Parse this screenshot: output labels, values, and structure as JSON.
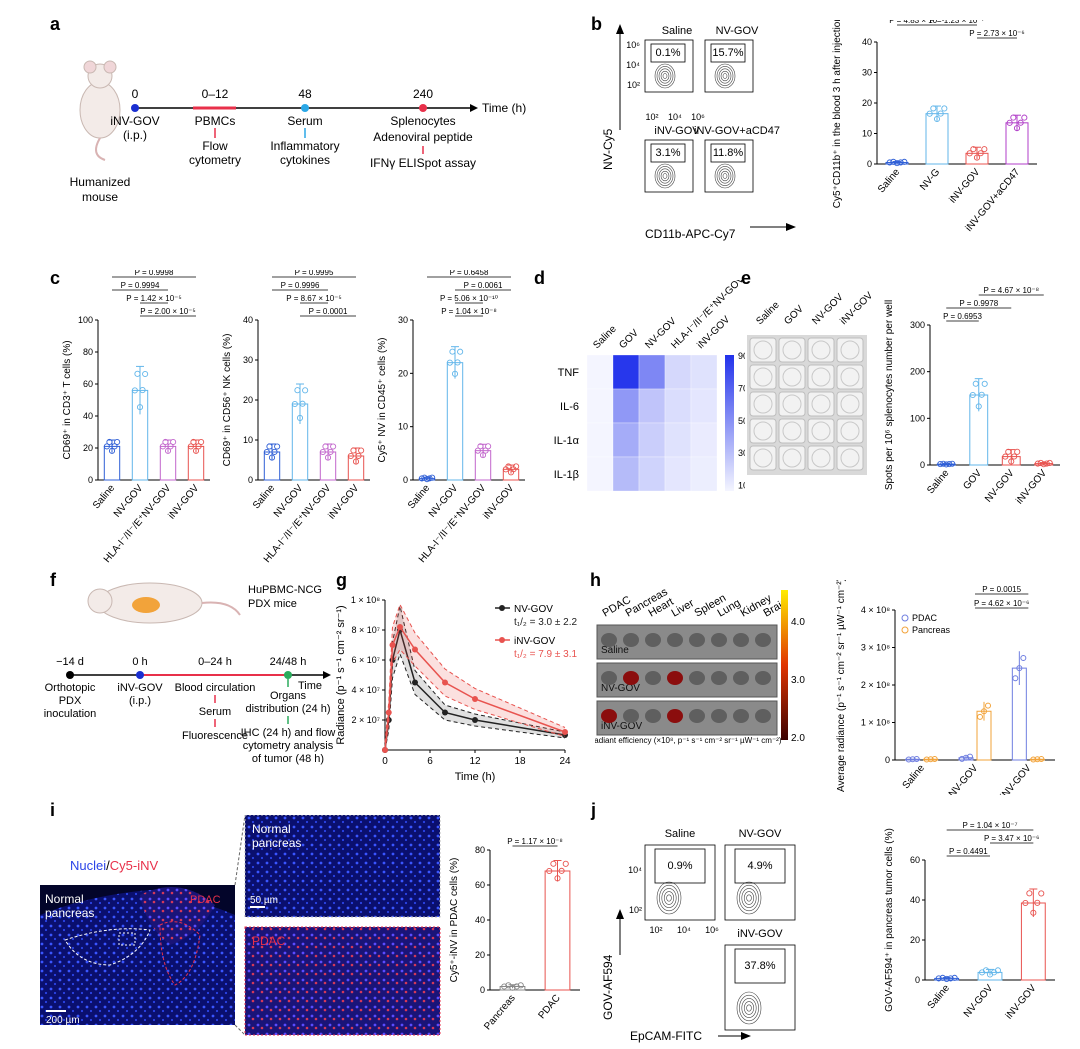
{
  "panels": {
    "a": "a",
    "b": "b",
    "c": "c",
    "d": "d",
    "e": "e",
    "f": "f",
    "g": "g",
    "h": "h",
    "i": "i",
    "j": "j"
  },
  "colors": {
    "saline": "#2f5fd6",
    "nvgov": "#62b6ea",
    "hla": "#c266cc",
    "ingov": "#e8534f",
    "acd47": "#b03cc8",
    "blue_marker": "#1a2fd1",
    "red_marker": "#e8304a",
    "cyan_marker": "#2aa7e6",
    "green_marker": "#2bab5c",
    "pancreas": "#f2a33a",
    "pdac": "#6f7ee0"
  },
  "panel_a": {
    "mouse_label_1": "Humanized",
    "mouse_label_2": "mouse",
    "time_axis_label": "Time (h)",
    "ticks": [
      {
        "t": "0",
        "l1": "iNV-GOV",
        "l2": "(i.p.)"
      },
      {
        "t": "0–12",
        "l1": "PBMCs",
        "l2": "Flow",
        "l3": "cytometry"
      },
      {
        "t": "48",
        "l1": "Serum",
        "l2": "Inflammatory",
        "l3": "cytokines"
      },
      {
        "t": "240",
        "l1": "Splenocytes",
        "l2": "Adenoviral peptide",
        "l3": "IFNγ ELISpot assay"
      }
    ]
  },
  "panel_b": {
    "y_axis": "NV-Cy5",
    "x_axis": "CD11b-APC-Cy7",
    "y_ticks": [
      "10⁶",
      "10⁴",
      "10²"
    ],
    "x_ticks": [
      "10²",
      "10⁴",
      "10⁶"
    ],
    "plots": [
      {
        "title": "Saline",
        "pct": "0.1%"
      },
      {
        "title": "NV-GOV",
        "pct": "15.7%"
      },
      {
        "title": "iNV-GOV",
        "pct": "3.1%"
      },
      {
        "title": "iNV-GOV+aCD47",
        "pct": "11.8%"
      }
    ]
  },
  "panel_c": {
    "legend_groups": [
      "Saline",
      "NV-GOV",
      "HLA-I⁻/II⁻/E⁺NV-GOV",
      "iNV-GOV"
    ]
  },
  "panel_d": {
    "columns": [
      "Saline",
      "GOV",
      "NV-GOV",
      "HLA-I⁻/II⁻/E⁺NV-GOV",
      "iNV-GOV"
    ],
    "rows": [
      "TNF",
      "IL-6",
      "IL-1α",
      "IL-1β"
    ],
    "colorbar_label": "Concentration (pg ml⁻¹)",
    "colorbar_ticks": [
      "90",
      "70",
      "50",
      "30",
      "10"
    ],
    "values": [
      [
        10,
        88,
        55,
        22,
        18
      ],
      [
        10,
        48,
        30,
        20,
        16
      ],
      [
        10,
        40,
        26,
        18,
        14
      ],
      [
        10,
        34,
        24,
        16,
        13
      ]
    ]
  },
  "panel_e": {
    "columns": [
      "Saline",
      "GOV",
      "NV-GOV",
      "iNV-GOV"
    ]
  },
  "panel_f": {
    "mouse_label_1": "HuPBMC-NCG",
    "mouse_label_2": "PDX mice",
    "time_label": "Time",
    "ticks": [
      {
        "t": "−14 d",
        "l1": "Orthotopic",
        "l2": "PDX",
        "l3": "inoculation"
      },
      {
        "t": "0 h",
        "l1": "iNV-GOV",
        "l2": "(i.p.)"
      },
      {
        "t": "0–24 h",
        "l1": "Blood circulation",
        "l2": "Serum",
        "l3": "Fluorescence"
      },
      {
        "t": "24/48 h",
        "l1": "Organs",
        "l2": "distribution (24 h)",
        "l3": "IHC (24 h) and flow",
        "l4": "cytometry analysis",
        "l5": "of tumor (48 h)"
      }
    ]
  },
  "panel_h": {
    "organs": [
      "PDAC",
      "Pancreas",
      "Heart",
      "Liver",
      "Spleen",
      "Lung",
      "Kidney",
      "Brain"
    ],
    "rows": [
      "Saline",
      "NV-GOV",
      "iNV-GOV"
    ],
    "colorbar_ticks": [
      "4.0",
      "3.0",
      "2.0"
    ],
    "colorbar_label": "Radiant efficiency (×10⁸, p⁻¹ s⁻¹ cm⁻² sr⁻¹ µW⁻¹ cm⁻²)"
  },
  "panel_i": {
    "legend_nuclei": "Nuclei",
    "legend_sep": "/",
    "legend_cy5": "Cy5-iNV",
    "label_normal_1": "Normal",
    "label_normal_2": "pancreas",
    "label_pdac": "PDAC",
    "scale_200": "200 µm",
    "scale_50": "50 µm",
    "zoom_top_1": "Normal",
    "zoom_top_2": "pancreas",
    "zoom_bottom": "PDAC"
  },
  "panel_j": {
    "y_axis": "GOV-AF594",
    "x_axis": "EpCAM-FITC",
    "y_ticks": [
      "10⁴",
      "10²"
    ],
    "x_ticks": [
      "10²",
      "10⁴",
      "10⁶"
    ],
    "plots": [
      {
        "title": "Saline",
        "pct": "0.9%"
      },
      {
        "title": "NV-GOV",
        "pct": "4.9%"
      },
      {
        "title": "iNV-GOV",
        "pct": "37.8%"
      }
    ]
  },
  "chart_data": [
    {
      "id": "b-bar",
      "type": "bar",
      "categories": [
        "Saline",
        "NV-G",
        "iNV-GOV",
        "iNV-GOV+aCD47"
      ],
      "values": [
        0.5,
        16.5,
        3.5,
        13.5
      ],
      "errors": [
        0.3,
        2.5,
        2.0,
        2.5
      ],
      "ylabel": "Cy5⁺CD11b⁺ in the blood 3 h after injection (%)",
      "ylim": [
        0,
        40
      ],
      "yticks": [
        "0",
        "10",
        "20",
        "30",
        "40"
      ],
      "pvalues": [
        {
          "a": 0,
          "b": 3,
          "label": "P = 6.29 × 10⁻⁶",
          "level": 4
        },
        {
          "a": 0,
          "b": 2,
          "label": "P = 0.0838",
          "level": 3
        },
        {
          "a": 0,
          "b": 1,
          "label": "P = 4.83 × 10⁻⁹",
          "level": 2
        },
        {
          "a": 1,
          "b": 2,
          "label": "P = 1.23 × 10⁻⁷",
          "level": 2
        },
        {
          "a": 2,
          "b": 3,
          "label": "P = 2.73 × 10⁻⁶",
          "level": 1
        }
      ]
    },
    {
      "id": "c1",
      "type": "bar",
      "categories": [
        "Saline",
        "NV-GOV",
        "HLA-I⁻/II⁻/E⁺NV-GOV",
        "iNV-GOV"
      ],
      "values": [
        21,
        56,
        21,
        21
      ],
      "errors": [
        4,
        15,
        4,
        4
      ],
      "ylabel": "CD69⁺ in CD3⁺ T cells (%)",
      "ylim": [
        0,
        100
      ],
      "yticks": [
        "0",
        "20",
        "40",
        "60",
        "80",
        "100"
      ],
      "pvalues": [
        {
          "a": 0,
          "b": 3,
          "label": "P = 0.9998",
          "level": 4
        },
        {
          "a": 0,
          "b": 2,
          "label": "P = 0.9994",
          "level": 3
        },
        {
          "a": 1,
          "b": 2,
          "label": "P = 1.42 × 10⁻⁵",
          "level": 2
        },
        {
          "a": 1,
          "b": 3,
          "label": "P = 2.00 × 10⁻⁵",
          "level": 1
        }
      ]
    },
    {
      "id": "c2",
      "type": "bar",
      "categories": [
        "Saline",
        "NV-GOV",
        "HLA-I⁻/II⁻/E⁺NV-GOV",
        "iNV-GOV"
      ],
      "values": [
        7,
        19,
        7,
        6
      ],
      "errors": [
        2,
        5,
        2,
        2
      ],
      "ylabel": "CD69⁺ in CD56⁺ NK cells (%)",
      "ylim": [
        0,
        40
      ],
      "yticks": [
        "0",
        "10",
        "20",
        "30",
        "40"
      ],
      "pvalues": [
        {
          "a": 0,
          "b": 3,
          "label": "P = 0.9995",
          "level": 4
        },
        {
          "a": 0,
          "b": 2,
          "label": "P = 0.9996",
          "level": 3
        },
        {
          "a": 1,
          "b": 2,
          "label": "P = 8.67 × 10⁻⁵",
          "level": 2
        },
        {
          "a": 1,
          "b": 3,
          "label": "P = 0.0001",
          "level": 1
        }
      ]
    },
    {
      "id": "c3",
      "type": "bar",
      "categories": [
        "Saline",
        "NV-GOV",
        "HLA-I⁻/II⁻/E⁺NV-GOV",
        "iNV-GOV"
      ],
      "values": [
        0.3,
        22,
        5.5,
        2
      ],
      "errors": [
        0.2,
        3,
        1.2,
        0.8
      ],
      "ylabel": "Cy5⁺ NV in CD45⁺ cells (%)",
      "ylim": [
        0,
        30
      ],
      "yticks": [
        "0",
        "10",
        "20",
        "30"
      ],
      "pvalues": [
        {
          "a": 0,
          "b": 3,
          "label": "P = 0.6458",
          "level": 4
        },
        {
          "a": 1,
          "b": 3,
          "label": "P = 0.0061",
          "level": 3
        },
        {
          "a": 1,
          "b": 2,
          "label": "P = 5.06 × 10⁻¹⁰",
          "level": 2
        },
        {
          "a": 1,
          "b": 2,
          "label": "P = 1.04 × 10⁻⁸",
          "level": 1
        }
      ]
    },
    {
      "id": "e-bar",
      "type": "bar",
      "categories": [
        "Saline",
        "GOV",
        "NV-GOV",
        "iNV-GOV"
      ],
      "values": [
        2,
        150,
        18,
        3
      ],
      "errors": [
        1,
        35,
        15,
        2
      ],
      "ylabel": "Spots per 10⁶ splenocytes number per well",
      "ylim": [
        0,
        300
      ],
      "yticks": [
        "0",
        "100",
        "200",
        "300"
      ],
      "pvalues": [
        {
          "a": 1,
          "b": 3,
          "label": "P = 4.67 × 10⁻⁸",
          "level": 3
        },
        {
          "a": 0,
          "b": 2,
          "label": "P = 0.9978",
          "level": 2
        },
        {
          "a": 0,
          "b": 1,
          "label": "P = 0.6953",
          "level": 1
        }
      ]
    },
    {
      "id": "g-line",
      "type": "line",
      "x": [
        0,
        0.5,
        1,
        2,
        4,
        8,
        12,
        24
      ],
      "series": [
        {
          "name": "NV-GOV",
          "half_life": "t₁/₂ = 3.0 ± 2.2",
          "values": [
            0,
            2,
            6,
            8,
            4.5,
            2.5,
            2,
            1
          ],
          "band": [
            0.5,
            0.7,
            1.2,
            1.6,
            0.8,
            0.5,
            0.4,
            0.2
          ]
        },
        {
          "name": "iNV-GOV",
          "half_life": "t₁/₂ = 7.9 ± 3.1",
          "values": [
            0,
            2.5,
            7,
            8.2,
            6.7,
            4.5,
            3.4,
            1.2
          ],
          "band": [
            0.5,
            0.7,
            1.2,
            1.5,
            1.1,
            0.9,
            0.7,
            0.3
          ]
        }
      ],
      "ylabel": "Radiance (p⁻¹ s⁻¹ cm⁻² sr⁻¹)",
      "xlabel": "Time (h)",
      "ylim": [
        0,
        10
      ],
      "yticks": [
        "1 × 10⁸",
        "8 × 10⁷",
        "6 × 10⁷",
        "4 × 10⁷",
        "2 × 10⁷"
      ],
      "xticks": [
        "0",
        "6",
        "12",
        "18",
        "24"
      ]
    },
    {
      "id": "h-bar",
      "type": "bar",
      "categories": [
        "Saline",
        "NV-GOV",
        "iNV-GOV"
      ],
      "series": [
        {
          "name": "PDAC",
          "values": [
            0.02,
            0.06,
            2.45
          ],
          "errors": [
            0.01,
            0.05,
            0.45
          ]
        },
        {
          "name": "Pancreas",
          "values": [
            0.02,
            1.3,
            0.02
          ],
          "errors": [
            0.01,
            0.25,
            0.01
          ]
        }
      ],
      "ylabel": "Average radiance (p⁻¹ s⁻¹ cm⁻² sr⁻¹ µW⁻¹ cm⁻²)",
      "ylim": [
        0,
        4
      ],
      "yticks": [
        "0",
        "1 × 10⁸",
        "2 × 10⁸",
        "3 × 10⁸",
        "4 × 10⁸"
      ],
      "pvalues": [
        {
          "label": "P = 0.0015",
          "level": 2
        },
        {
          "label": "P = 4.62 × 10⁻⁶",
          "level": 1
        }
      ]
    },
    {
      "id": "i-bar",
      "type": "bar",
      "categories": [
        "Pancreas",
        "PDAC"
      ],
      "values": [
        2,
        68
      ],
      "errors": [
        1,
        6
      ],
      "ylabel": "Cy5⁺-iNV in PDAC cells (%)",
      "ylim": [
        0,
        80
      ],
      "yticks": [
        "0",
        "20",
        "40",
        "60",
        "80"
      ],
      "pvalues": [
        {
          "a": 0,
          "b": 1,
          "label": "P = 1.17 × 10⁻⁸",
          "level": 1
        }
      ]
    },
    {
      "id": "j-bar",
      "type": "bar",
      "categories": [
        "Saline",
        "NV-GOV",
        "iNV-GOV"
      ],
      "values": [
        0.8,
        3.8,
        38.5
      ],
      "errors": [
        0.4,
        1.5,
        7
      ],
      "ylabel": "GOV-AF594⁺ in pancreas tumor cells (%)",
      "ylim": [
        0,
        60
      ],
      "yticks": [
        "0",
        "20",
        "40",
        "60"
      ],
      "pvalues": [
        {
          "a": 0,
          "b": 2,
          "label": "P = 1.04 × 10⁻⁷",
          "level": 3
        },
        {
          "a": 1,
          "b": 2,
          "label": "P = 3.47 × 10⁻⁶",
          "level": 2
        },
        {
          "a": 0,
          "b": 1,
          "label": "P = 0.4491",
          "level": 1
        }
      ]
    }
  ]
}
